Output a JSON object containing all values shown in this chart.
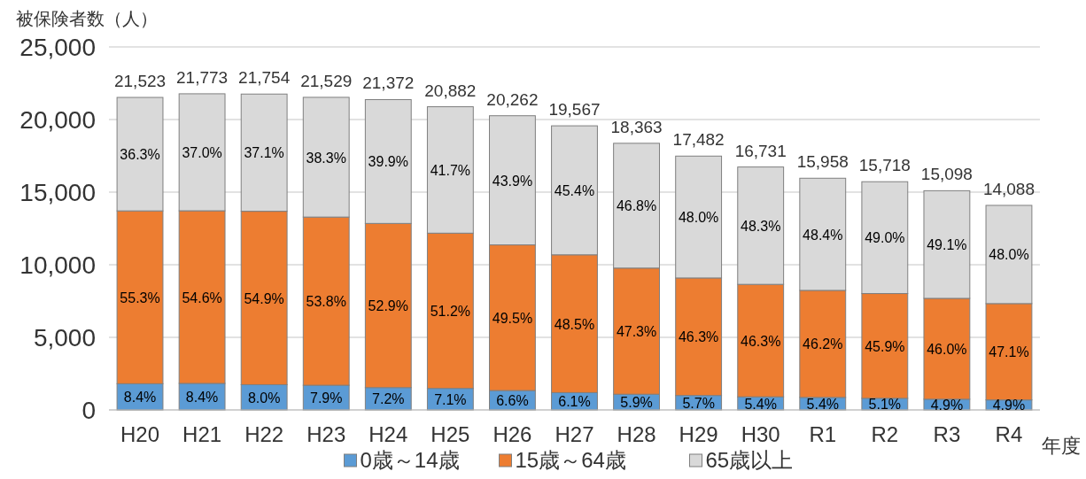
{
  "chart_data": {
    "type": "bar",
    "stacked": true,
    "ylabel": "被保険者数（人）",
    "xlabel": "年度",
    "categories": [
      "H20",
      "H21",
      "H22",
      "H23",
      "H24",
      "H25",
      "H26",
      "H27",
      "H28",
      "H29",
      "H30",
      "R1",
      "R2",
      "R3",
      "R4"
    ],
    "series": [
      {
        "name": "0歳～14歳",
        "color": "#5b9bd5",
        "values": [
          1808,
          1829,
          1740,
          1701,
          1539,
          1483,
          1337,
          1194,
          1083,
          996,
          903,
          862,
          802,
          740,
          690
        ]
      },
      {
        "name": "15歳～64歳",
        "color": "#ed7d31",
        "values": [
          11902,
          11888,
          11943,
          11583,
          11306,
          10692,
          10030,
          9490,
          8686,
          8094,
          7746,
          7373,
          7215,
          6945,
          6635
        ]
      },
      {
        "name": "65歳以上",
        "color": "#d9d9d9",
        "values": [
          7813,
          8056,
          8071,
          8245,
          8527,
          8707,
          8895,
          8883,
          8594,
          8392,
          8082,
          7723,
          7701,
          7413,
          6763
        ]
      }
    ],
    "annotations": [
      "8.4%",
      "8.4%",
      "8.0%",
      "7.9%",
      "7.2%",
      "7.1%",
      "6.6%",
      "6.1%",
      "5.9%",
      "5.7%",
      "5.4%",
      "5.4%",
      "5.1%",
      "4.9%",
      "4.9%",
      "55.3%",
      "54.6%",
      "54.9%",
      "53.8%",
      "52.9%",
      "51.2%",
      "49.5%",
      "48.5%",
      "47.3%",
      "46.3%",
      "46.3%",
      "46.2%",
      "45.9%",
      "46.0%",
      "47.1%",
      "36.3%",
      "37.0%",
      "37.1%",
      "38.3%",
      "39.9%",
      "41.7%",
      "43.9%",
      "45.4%",
      "46.8%",
      "48.0%",
      "48.3%",
      "48.4%",
      "49.0%",
      "49.1%",
      "48.0%"
    ],
    "totals": [
      "21,523",
      "21,773",
      "21,754",
      "21,529",
      "21,372",
      "20,882",
      "20,262",
      "19,567",
      "18,363",
      "17,482",
      "16,731",
      "15,958",
      "15,718",
      "15,098",
      "14,088"
    ],
    "ylim": [
      0,
      25000
    ],
    "yticks": [
      {
        "value": 0,
        "label": "0"
      },
      {
        "value": 5000,
        "label": "5,000"
      },
      {
        "value": 10000,
        "label": "10,000"
      },
      {
        "value": 15000,
        "label": "15,000"
      },
      {
        "value": 20000,
        "label": "20,000"
      },
      {
        "value": 25000,
        "label": "25,000"
      }
    ],
    "grid": "y",
    "legend": "bottom"
  }
}
